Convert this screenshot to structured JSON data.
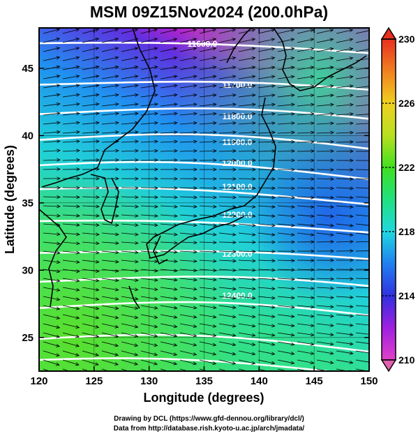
{
  "title": "MSM 09Z15Nov2024 (200.0hPa)",
  "map": {
    "lon_range": [
      120,
      150
    ],
    "lat_range": [
      22.5,
      48
    ],
    "lon_ticks": [
      "120",
      "125",
      "130",
      "135",
      "140",
      "145",
      "150"
    ],
    "lat_ticks": [
      "25",
      "30",
      "35",
      "40",
      "45"
    ],
    "xlabel": "Longitude (degrees)",
    "ylabel": "Latitude  (degrees)",
    "contour_labels": [
      "11600.0",
      "11700.0",
      "11800.0",
      "11900.0",
      "12000.0",
      "12100.0",
      "12200.0",
      "12300.0",
      "12400.0"
    ],
    "contour_line_color": "#ffffff",
    "vector_color": "#000000",
    "coast_color": "#000000"
  },
  "colorbar": {
    "tick_labels": [
      "230",
      "226",
      "222",
      "218",
      "214",
      "210"
    ],
    "range": [
      210,
      230
    ],
    "colors": [
      "#e040c8",
      "#a020e0",
      "#3030e0",
      "#2080f0",
      "#20d8e0",
      "#20e080",
      "#40e020",
      "#b8e020",
      "#f0d020",
      "#f08020",
      "#e83020"
    ]
  },
  "credits": {
    "line1": "Drawing by DCL (https://www.gfd-dennou.org/library/dcl/)",
    "line2": "Data from http://database.rish.kyoto-u.ac.jp/arch/jmadata/"
  }
}
